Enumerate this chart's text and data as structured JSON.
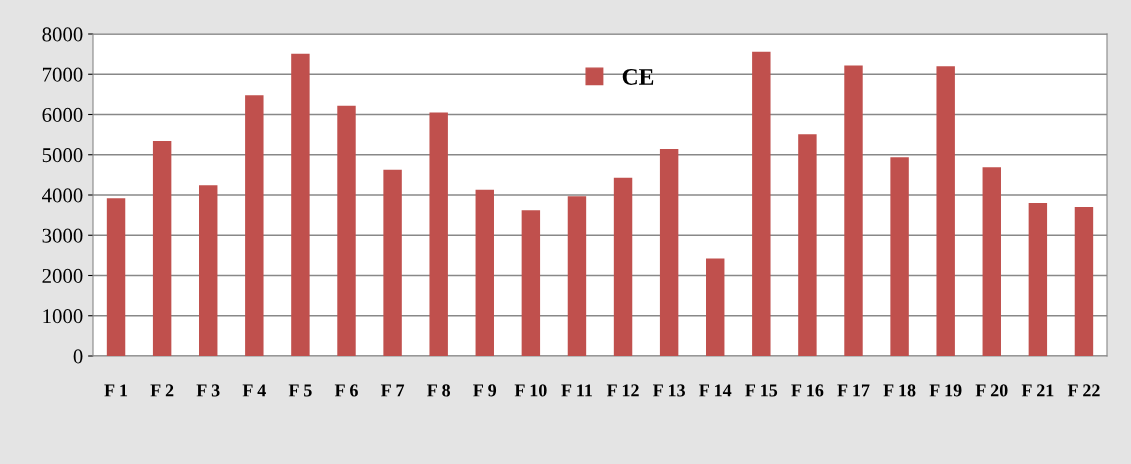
{
  "chart_data": {
    "type": "bar",
    "categories": [
      "F 1",
      "F 2",
      "F 3",
      "F 4",
      "F 5",
      "F 6",
      "F 7",
      "F 8",
      "F 9",
      "F 10",
      "F 11",
      "F 12",
      "F 13",
      "F 14",
      "F 15",
      "F 16",
      "F 17",
      "F 18",
      "F 19",
      "F 20",
      "F 21",
      "F 22"
    ],
    "series": [
      {
        "name": "CE",
        "color": "#c0504d",
        "values": [
          3920,
          5340,
          4240,
          6480,
          7510,
          6220,
          4630,
          6050,
          4130,
          3620,
          3970,
          4430,
          5140,
          2420,
          7560,
          5510,
          7220,
          4940,
          7200,
          4690,
          3800,
          3700
        ]
      }
    ],
    "ylim": [
      0,
      8000
    ],
    "yticks": [
      0,
      1000,
      2000,
      3000,
      4000,
      5000,
      6000,
      7000,
      8000
    ],
    "grid": "y",
    "legend": "top"
  }
}
